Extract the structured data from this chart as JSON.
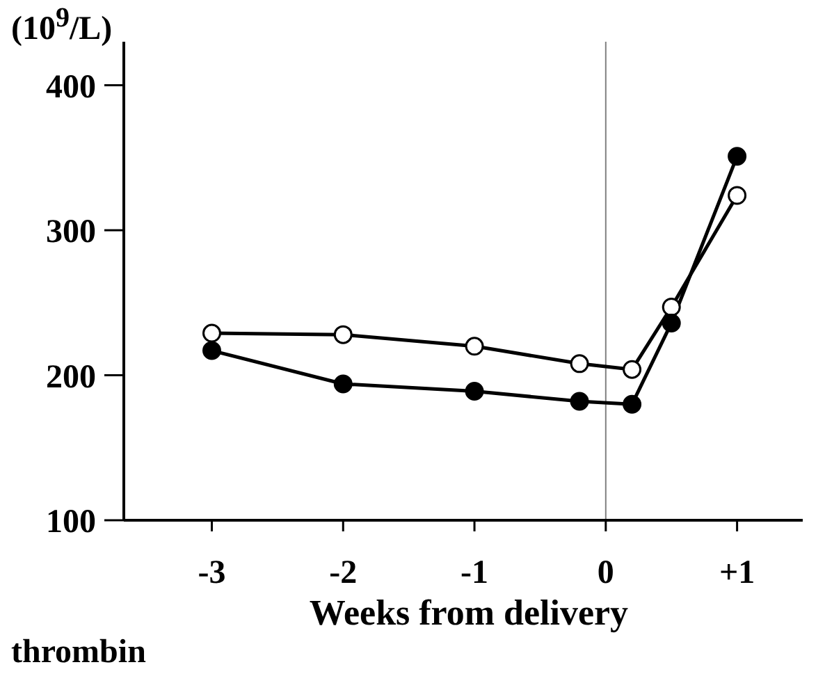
{
  "chart_data": {
    "type": "line",
    "ylabel": "(10$^{9}$/L)",
    "xlabel": "Weeks from delivery",
    "annotations": [
      "thrombin"
    ],
    "xlim": [
      -3.67,
      1.5
    ],
    "xticks": [
      -3,
      -2,
      -1,
      0,
      {
        "value": 1,
        "label": "+1"
      }
    ],
    "ylim": [
      100,
      430
    ],
    "yticks": [
      100,
      200,
      300,
      400
    ],
    "grid": false,
    "legend": false,
    "marker": "circle",
    "line_style": "solid",
    "ref_lines": [
      {
        "axis": "x",
        "value": 0,
        "color": "#808080"
      }
    ],
    "series": [
      {
        "color": "#000000",
        "colors": [
          "#ffffff",
          "#ffffff",
          "#ffffff",
          "#ffffff",
          "#ffffff",
          "#ffffff",
          "#ffffff"
        ],
        "x": [
          -3,
          -2,
          -1,
          -0.2,
          0.2,
          0.5,
          1
        ],
        "values": [
          229,
          228,
          220,
          208,
          204,
          247,
          324
        ]
      },
      {
        "color": "#000000",
        "colors": [
          "#000000",
          "#000000",
          "#000000",
          "#000000",
          "#000000",
          "#000000",
          "#000000"
        ],
        "x": [
          -3,
          -2,
          -1,
          -0.2,
          0.2,
          0.5,
          1
        ],
        "values": [
          217,
          194,
          189,
          182,
          180,
          236,
          351
        ]
      }
    ]
  }
}
